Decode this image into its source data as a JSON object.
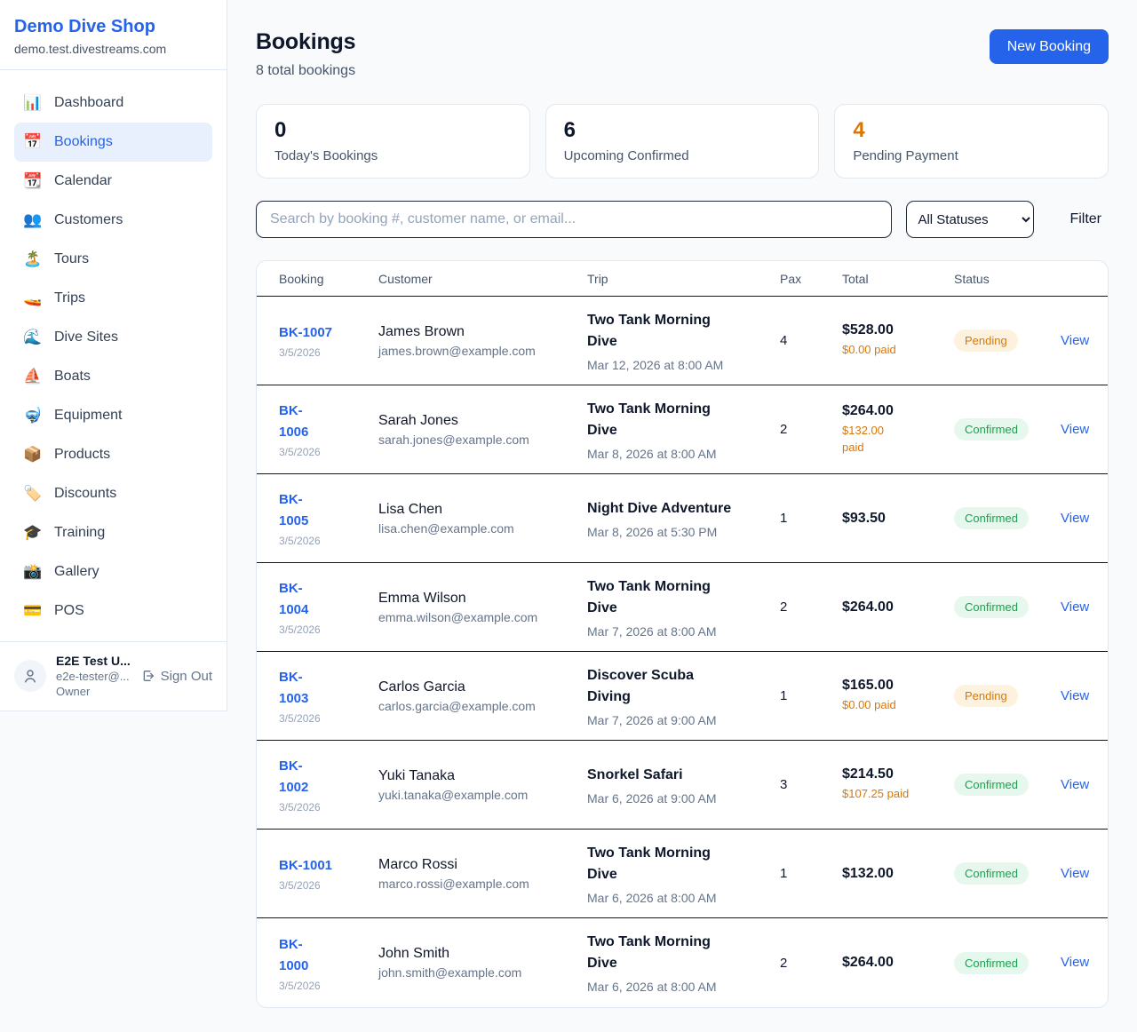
{
  "colors": {
    "accent_blue": "#2563eb",
    "pending_orange": "#d97706",
    "confirmed_green": "#16a34a",
    "pending_badge_bg": "#fdf2dd",
    "confirmed_badge_bg": "#e6f8ed",
    "page_bg": "#f8fafc"
  },
  "sidebar": {
    "brand": "Demo Dive Shop",
    "domain": "demo.test.divestreams.com",
    "items": [
      {
        "label": "Dashboard",
        "icon": "📊",
        "active": false
      },
      {
        "label": "Bookings",
        "icon": "📅",
        "active": true
      },
      {
        "label": "Calendar",
        "icon": "📆",
        "active": false
      },
      {
        "label": "Customers",
        "icon": "👥",
        "active": false
      },
      {
        "label": "Tours",
        "icon": "🏝️",
        "active": false
      },
      {
        "label": "Trips",
        "icon": "🚤",
        "active": false
      },
      {
        "label": "Dive Sites",
        "icon": "🌊",
        "active": false
      },
      {
        "label": "Boats",
        "icon": "⛵",
        "active": false
      },
      {
        "label": "Equipment",
        "icon": "🤿",
        "active": false
      },
      {
        "label": "Products",
        "icon": "📦",
        "active": false
      },
      {
        "label": "Discounts",
        "icon": "🏷️",
        "active": false
      },
      {
        "label": "Training",
        "icon": "🎓",
        "active": false
      },
      {
        "label": "Gallery",
        "icon": "📸",
        "active": false
      },
      {
        "label": "POS",
        "icon": "💳",
        "active": false
      }
    ],
    "user": {
      "name": "E2E Test U...",
      "email": "e2e-tester@...",
      "role": "Owner",
      "sign_out_label": "Sign Out"
    }
  },
  "header": {
    "title": "Bookings",
    "subtitle": "8 total bookings",
    "new_booking_label": "New Booking"
  },
  "stats": [
    {
      "value": "0",
      "label": "Today's Bookings",
      "accent": false
    },
    {
      "value": "6",
      "label": "Upcoming Confirmed",
      "accent": false
    },
    {
      "value": "4",
      "label": "Pending Payment",
      "accent": true
    }
  ],
  "controls": {
    "search_placeholder": "Search by booking #, customer name, or email...",
    "status_filter_value": "All Statuses",
    "filter_label": "Filter"
  },
  "table": {
    "columns": [
      "Booking",
      "Customer",
      "Trip",
      "Pax",
      "Total",
      "Status"
    ],
    "view_label": "View",
    "rows": [
      {
        "id": "BK-1007",
        "date": "3/5/2026",
        "customer": "James Brown",
        "email": "james.brown@example.com",
        "trip": "Two Tank Morning\nDive",
        "trip_datetime": "Mar 12, 2026 at 8:00 AM",
        "pax": "4",
        "total": "$528.00",
        "paid": "$0.00 paid",
        "status": "Pending"
      },
      {
        "id": "BK-\n1006",
        "date": "3/5/2026",
        "customer": "Sarah Jones",
        "email": "sarah.jones@example.com",
        "trip": "Two Tank Morning\nDive",
        "trip_datetime": "Mar 8, 2026 at 8:00 AM",
        "pax": "2",
        "total": "$264.00",
        "paid": "$132.00\npaid",
        "status": "Confirmed"
      },
      {
        "id": "BK-\n1005",
        "date": "3/5/2026",
        "customer": "Lisa Chen",
        "email": "lisa.chen@example.com",
        "trip": "Night Dive Adventure",
        "trip_datetime": "Mar 8, 2026 at 5:30 PM",
        "pax": "1",
        "total": "$93.50",
        "paid": "",
        "status": "Confirmed"
      },
      {
        "id": "BK-\n1004",
        "date": "3/5/2026",
        "customer": "Emma Wilson",
        "email": "emma.wilson@example.com",
        "trip": "Two Tank Morning\nDive",
        "trip_datetime": "Mar 7, 2026 at 8:00 AM",
        "pax": "2",
        "total": "$264.00",
        "paid": "",
        "status": "Confirmed"
      },
      {
        "id": "BK-\n1003",
        "date": "3/5/2026",
        "customer": "Carlos Garcia",
        "email": "carlos.garcia@example.com",
        "trip": "Discover Scuba\nDiving",
        "trip_datetime": "Mar 7, 2026 at 9:00 AM",
        "pax": "1",
        "total": "$165.00",
        "paid": "$0.00 paid",
        "status": "Pending"
      },
      {
        "id": "BK-\n1002",
        "date": "3/5/2026",
        "customer": "Yuki Tanaka",
        "email": "yuki.tanaka@example.com",
        "trip": "Snorkel Safari",
        "trip_datetime": "Mar 6, 2026 at 9:00 AM",
        "pax": "3",
        "total": "$214.50",
        "paid": "$107.25 paid",
        "status": "Confirmed"
      },
      {
        "id": "BK-1001",
        "date": "3/5/2026",
        "customer": "Marco Rossi",
        "email": "marco.rossi@example.com",
        "trip": "Two Tank Morning\nDive",
        "trip_datetime": "Mar 6, 2026 at 8:00 AM",
        "pax": "1",
        "total": "$132.00",
        "paid": "",
        "status": "Confirmed"
      },
      {
        "id": "BK-\n1000",
        "date": "3/5/2026",
        "customer": "John Smith",
        "email": "john.smith@example.com",
        "trip": "Two Tank Morning\nDive",
        "trip_datetime": "Mar 6, 2026 at 8:00 AM",
        "pax": "2",
        "total": "$264.00",
        "paid": "",
        "status": "Confirmed"
      }
    ]
  }
}
